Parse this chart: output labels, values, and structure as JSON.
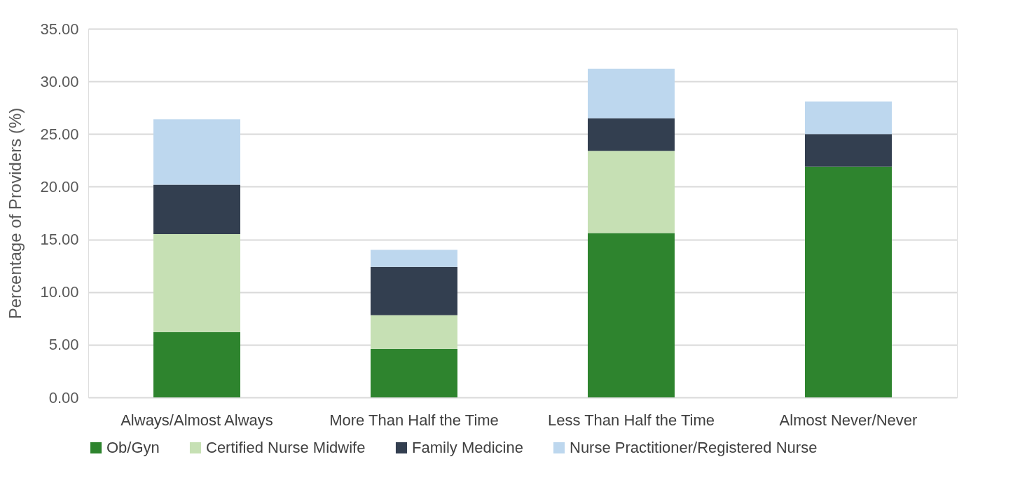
{
  "chart_data": {
    "type": "bar",
    "stacked": true,
    "ylabel": "Percentage of Providers (%)",
    "categories": [
      "Always/Almost Always",
      "More Than Half the Time",
      "Less Than Half the Time",
      "Almost Never/Never"
    ],
    "series": [
      {
        "name": "Ob/Gyn",
        "color": "#2e842e",
        "values": [
          6.2,
          4.6,
          15.6,
          21.9
        ]
      },
      {
        "name": "Certified Nurse Midwife",
        "color": "#c6e0b4",
        "values": [
          9.3,
          3.2,
          7.8,
          0
        ]
      },
      {
        "name": "Family Medicine",
        "color": "#333f50",
        "values": [
          4.7,
          4.6,
          3.1,
          3.1
        ]
      },
      {
        "name": "Nurse Practitioner/Registered Nurse",
        "color": "#bdd7ee",
        "values": [
          6.2,
          1.6,
          4.7,
          3.1
        ]
      }
    ],
    "ylim": [
      0,
      35
    ],
    "yticks": [
      {
        "value": 0,
        "label": "0.00"
      },
      {
        "value": 5,
        "label": "5.00"
      },
      {
        "value": 10,
        "label": "10.00"
      },
      {
        "value": 15,
        "label": "15.00"
      },
      {
        "value": 20,
        "label": "20.00"
      },
      {
        "value": 25,
        "label": "25.00"
      },
      {
        "value": 30,
        "label": "30.00"
      },
      {
        "value": 35,
        "label": "35.00"
      }
    ],
    "grid": "y",
    "legend": "bottom"
  }
}
